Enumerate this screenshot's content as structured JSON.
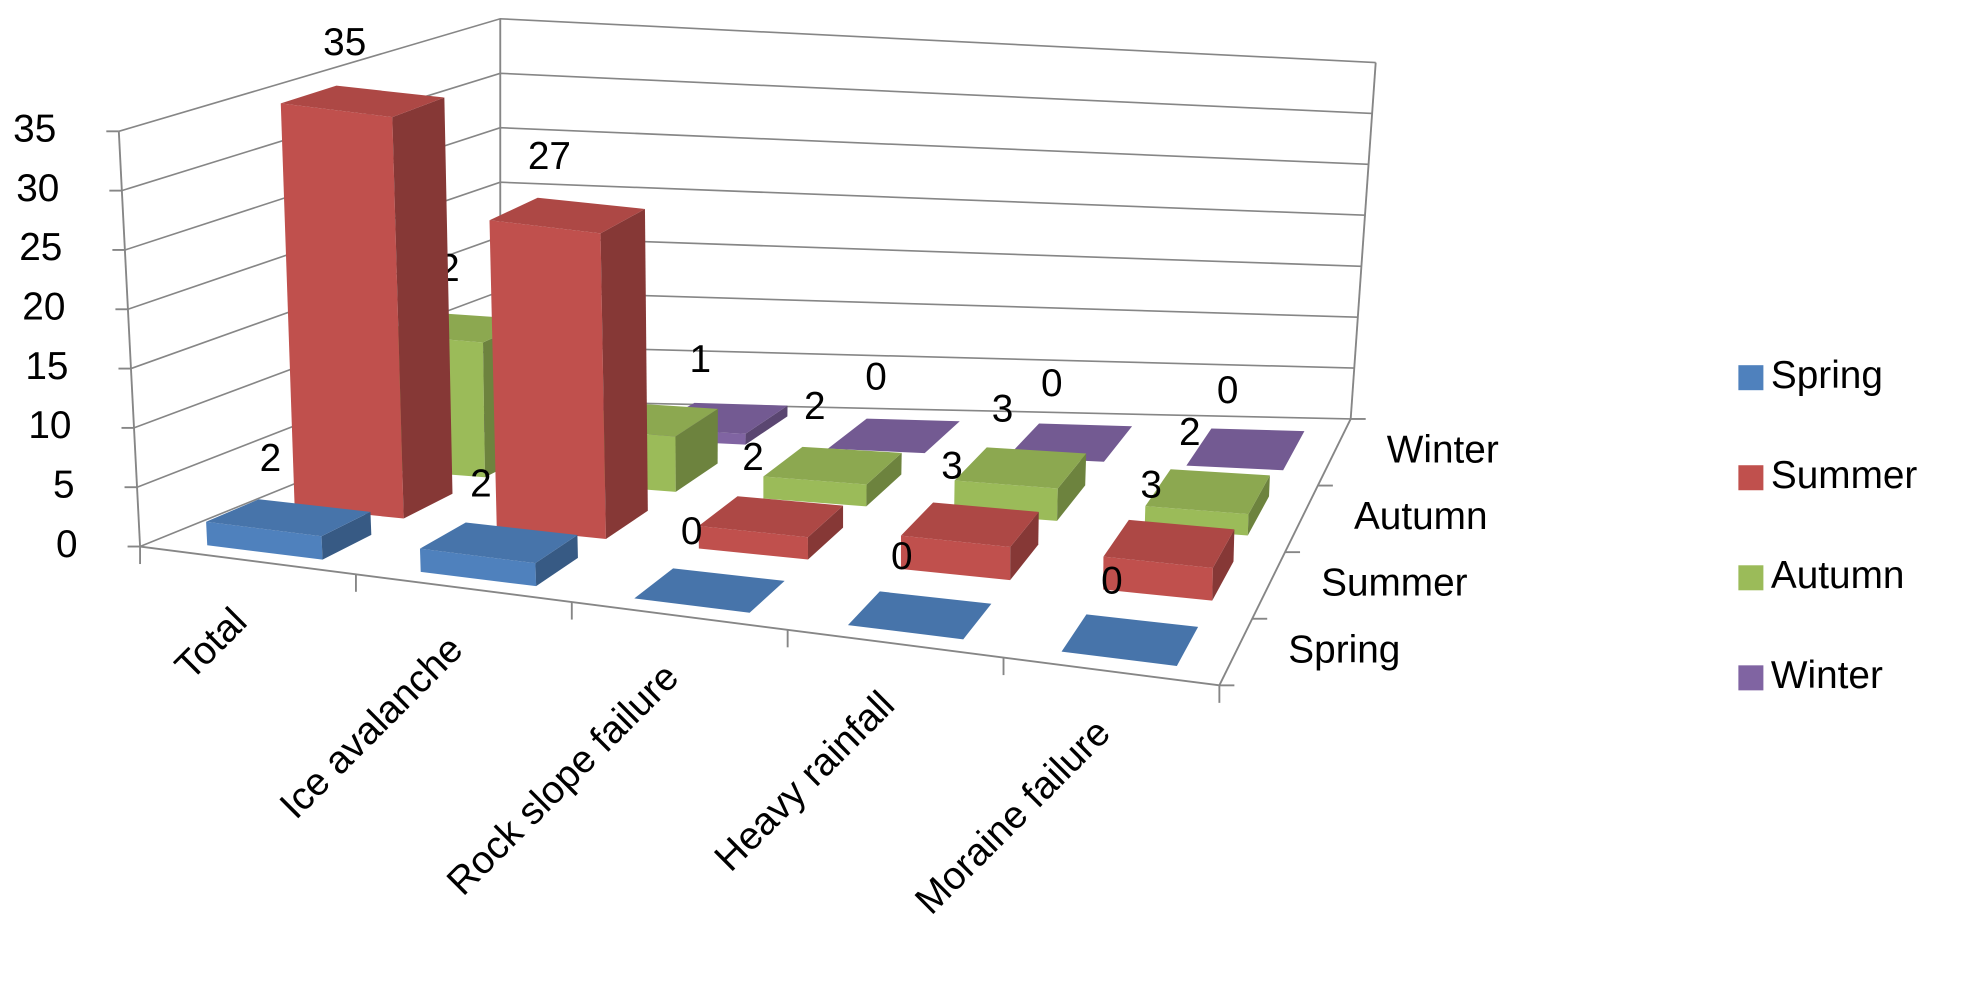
{
  "chart_data": {
    "type": "bar",
    "categories": [
      "Total",
      "Ice avalanche",
      "Rock slope failure",
      "Heavy  rainfall",
      "Moraine failure"
    ],
    "series": [
      {
        "name": "Spring",
        "color": "#4f81bd",
        "values": [
          2,
          2,
          0,
          0,
          0
        ]
      },
      {
        "name": "Summer",
        "color": "#c0504d",
        "values": [
          35,
          27,
          2,
          3,
          3
        ]
      },
      {
        "name": "Autumn",
        "color": "#9bbb59",
        "values": [
          12,
          5,
          2,
          3,
          2
        ]
      },
      {
        "name": "Winter",
        "color": "#8064a2",
        "values": [
          1,
          1,
          0,
          0,
          0
        ]
      }
    ],
    "ylim": [
      0,
      35
    ],
    "yticks": [
      0,
      5,
      10,
      15,
      20,
      25,
      30,
      35
    ],
    "grid": true,
    "legend": "right"
  }
}
